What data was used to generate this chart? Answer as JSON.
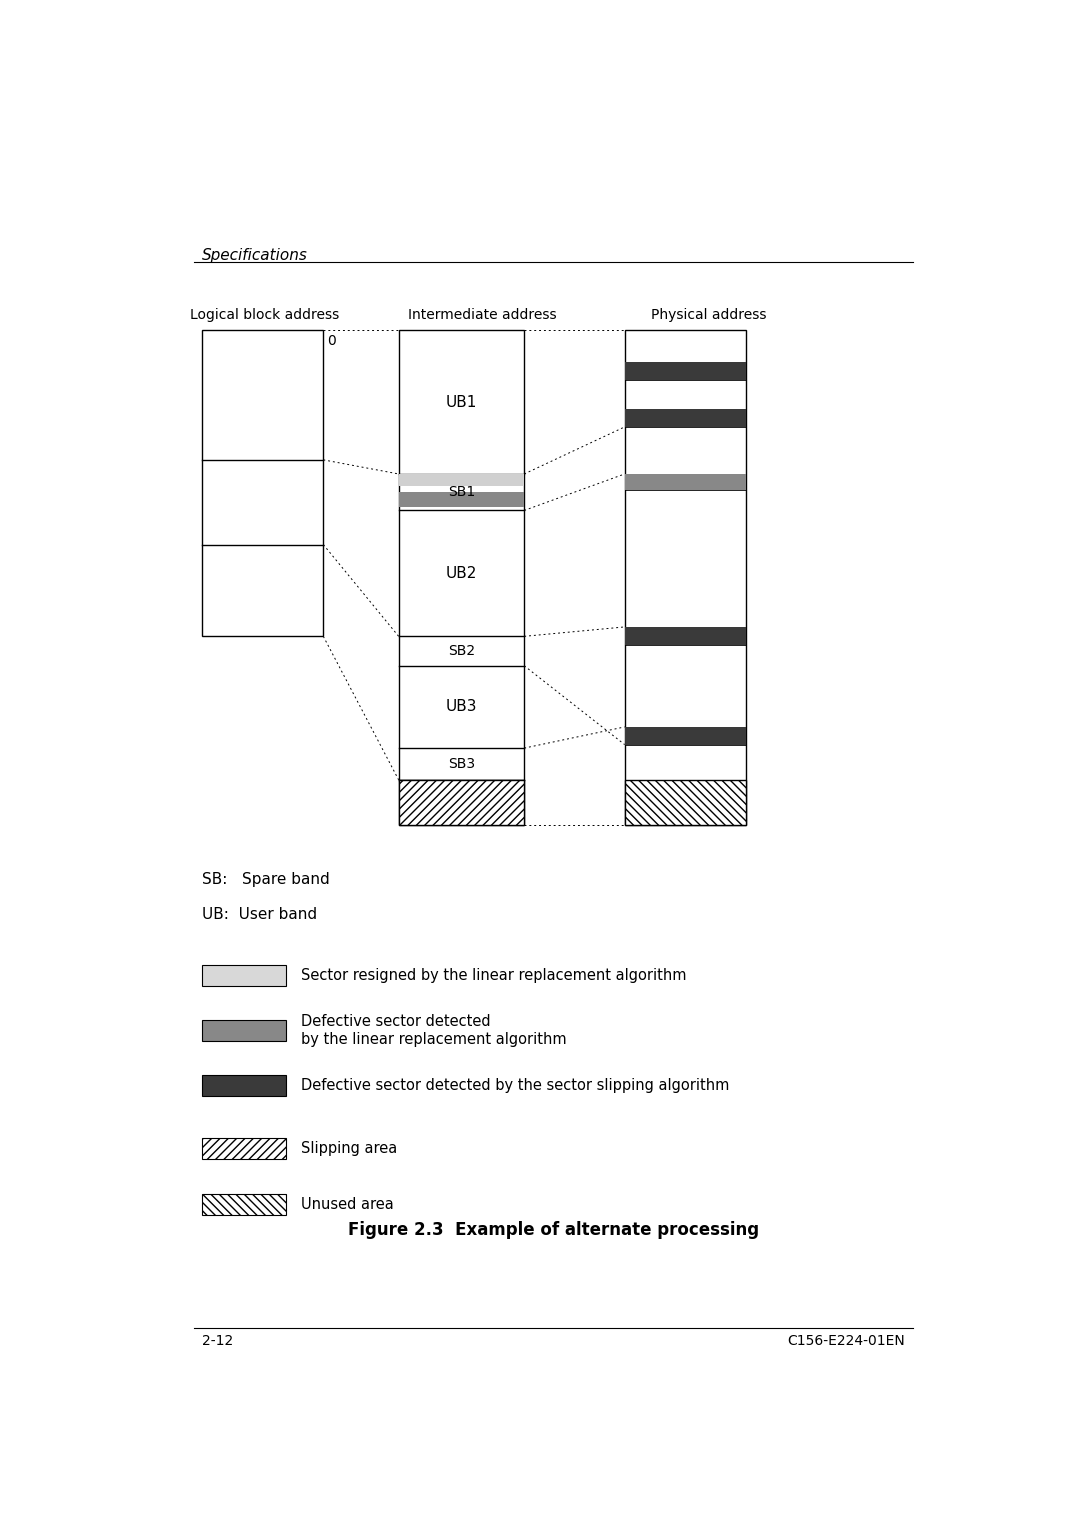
{
  "title": "Figure 2.3  Example of alternate processing",
  "header_text": "Specifications",
  "page_left": "2-12",
  "page_right": "C156-E224-01EN",
  "bg_color": "#ffffff",
  "text_color": "#000000",
  "legend_data": [
    {
      "color": "#d8d8d8",
      "hatch": "",
      "label": "Sector resigned by the linear replacement algorithm"
    },
    {
      "color": "#888888",
      "hatch": "",
      "label": "Defective sector detected\nby the linear replacement algorithm"
    },
    {
      "color": "#3a3a3a",
      "hatch": "",
      "label": "Defective sector detected by the sector slipping algorithm"
    },
    {
      "color": "#ffffff",
      "hatch": "////",
      "label": "Slipping area"
    },
    {
      "color": "#ffffff",
      "hatch": "\\\\\\\\",
      "label": "Unused area"
    }
  ]
}
